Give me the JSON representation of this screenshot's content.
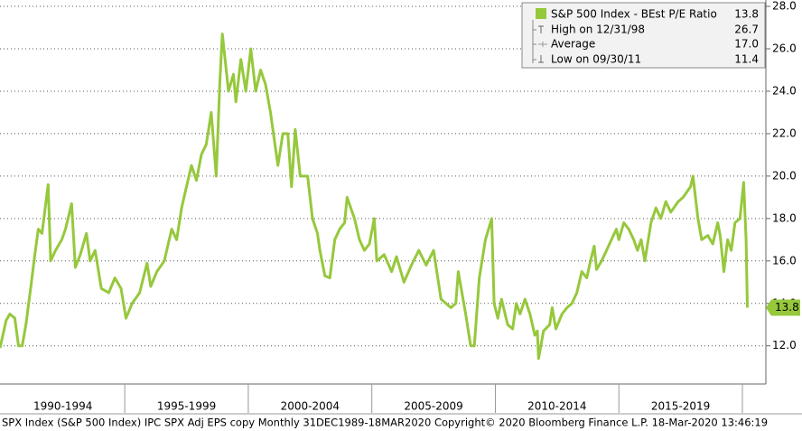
{
  "chart_data": {
    "type": "line",
    "legend": {
      "title": "S&P 500 Index - BEst P/E Ratio",
      "title_value": "13.8",
      "rows": [
        {
          "name": "High on 12/31/98",
          "value": "26.7"
        },
        {
          "name": "Average",
          "value": "17.0"
        },
        {
          "name": "Low on 09/30/11",
          "value": "11.4"
        }
      ]
    },
    "footer": "SPX Index (S&P 500 Index) IPC SPX Adj EPS copy  Monthly 31DEC1989-18MAR2020  Copyright© 2020 Bloomberg Finance L.P.  18-Mar-2020 13:46:19",
    "xlim": [
      1989.95,
      2020.95
    ],
    "xticks": [
      {
        "value": 1992.5,
        "label": "1990-1994"
      },
      {
        "value": 1997.5,
        "label": "1995-1999"
      },
      {
        "value": 2002.5,
        "label": "2000-2004"
      },
      {
        "value": 2007.5,
        "label": "2005-2009"
      },
      {
        "value": 2012.5,
        "label": "2010-2014"
      },
      {
        "value": 2017.5,
        "label": "2015-2019"
      }
    ],
    "ylim": [
      10.2,
      28.3
    ],
    "yticks": [
      {
        "value": 12,
        "label": "12.0"
      },
      {
        "value": 14,
        "label": "14.0"
      },
      {
        "value": 16,
        "label": "16.0"
      },
      {
        "value": 18,
        "label": "18.0"
      },
      {
        "value": 20,
        "label": "20.0"
      },
      {
        "value": 22,
        "label": "22.0"
      },
      {
        "value": 24,
        "label": "24.0"
      },
      {
        "value": 26,
        "label": "26.0"
      },
      {
        "value": 28,
        "label": "28.0"
      }
    ],
    "grid": true,
    "x": [
      1989.95,
      1990.2,
      1990.35,
      1990.55,
      1990.7,
      1990.85,
      1991.0,
      1991.2,
      1991.35,
      1991.5,
      1991.65,
      1991.9,
      1992.0,
      1992.2,
      1992.45,
      1992.6,
      1992.85,
      1993.0,
      1993.2,
      1993.45,
      1993.6,
      1993.8,
      1994.05,
      1994.35,
      1994.6,
      1994.85,
      1995.05,
      1995.3,
      1995.6,
      1995.9,
      1996.05,
      1996.3,
      1996.6,
      1996.9,
      1997.1,
      1997.3,
      1997.5,
      1997.7,
      1997.9,
      1998.1,
      1998.3,
      1998.5,
      1998.7,
      1998.85,
      1998.95,
      1999.2,
      1999.4,
      1999.5,
      1999.7,
      1999.9,
      2000.1,
      2000.3,
      2000.5,
      2000.7,
      2000.9,
      2001.2,
      2001.4,
      2001.6,
      2001.75,
      2001.9,
      2002.1,
      2002.4,
      2002.6,
      2002.8,
      2002.9,
      2003.1,
      2003.3,
      2003.5,
      2003.7,
      2003.9,
      2004.0,
      2004.3,
      2004.5,
      2004.7,
      2004.9,
      2005.1,
      2005.2,
      2005.5,
      2005.8,
      2006.0,
      2006.3,
      2006.6,
      2006.9,
      2007.2,
      2007.5,
      2007.8,
      2008.2,
      2008.4,
      2008.5,
      2008.8,
      2009.0,
      2009.15,
      2009.35,
      2009.6,
      2009.85,
      2009.95,
      2010.1,
      2010.25,
      2010.5,
      2010.7,
      2010.85,
      2011.0,
      2011.2,
      2011.4,
      2011.6,
      2011.7,
      2011.75,
      2011.95,
      2012.2,
      2012.3,
      2012.45,
      2012.7,
      2012.9,
      2013.1,
      2013.3,
      2013.5,
      2013.7,
      2013.85,
      2014.0,
      2014.1,
      2014.3,
      2014.5,
      2014.7,
      2014.9,
      2015.0,
      2015.2,
      2015.4,
      2015.6,
      2015.75,
      2015.9,
      2016.05,
      2016.3,
      2016.5,
      2016.7,
      2016.9,
      2017.1,
      2017.4,
      2017.6,
      2017.9,
      2018.0,
      2018.2,
      2018.35,
      2018.6,
      2018.8,
      2019.0,
      2019.1,
      2019.25,
      2019.4,
      2019.55,
      2019.7,
      2019.9,
      2020.05,
      2020.15,
      2020.2
    ],
    "series": [
      {
        "name": "S&P 500 Index - BEst P/E Ratio",
        "color": "#96c83c",
        "values": [
          11.9,
          13.2,
          13.5,
          13.3,
          12.0,
          12.0,
          13.0,
          14.8,
          16.2,
          17.5,
          17.3,
          19.6,
          16.0,
          16.5,
          17.0,
          17.5,
          18.7,
          15.7,
          16.3,
          17.3,
          16.0,
          16.5,
          14.7,
          14.5,
          15.2,
          14.7,
          13.3,
          14.0,
          14.5,
          15.9,
          14.8,
          15.5,
          16.0,
          17.5,
          17.0,
          18.5,
          19.5,
          20.5,
          19.8,
          21.0,
          21.5,
          23.0,
          20.0,
          24.5,
          26.7,
          24.0,
          24.8,
          23.5,
          25.5,
          24.0,
          26.0,
          24.0,
          25.0,
          24.3,
          23.0,
          20.5,
          22.0,
          22.0,
          19.5,
          22.2,
          20.0,
          20.0,
          18.0,
          17.3,
          16.5,
          15.3,
          15.2,
          17.0,
          17.5,
          17.8,
          19.0,
          18.0,
          17.0,
          16.5,
          16.8,
          18.0,
          16.0,
          16.3,
          15.5,
          16.2,
          15.0,
          15.8,
          16.5,
          15.8,
          16.5,
          14.2,
          13.8,
          14.0,
          15.5,
          13.5,
          12.0,
          12.0,
          15.2,
          17.0,
          18.0,
          14.0,
          13.3,
          14.2,
          13.0,
          12.8,
          14.0,
          13.5,
          14.2,
          13.5,
          12.5,
          12.7,
          11.4,
          12.7,
          13.0,
          13.8,
          12.8,
          13.5,
          13.8,
          14.0,
          14.5,
          15.5,
          15.2,
          16.0,
          16.7,
          15.6,
          16.0,
          16.5,
          17.0,
          17.5,
          17.0,
          17.8,
          17.5,
          17.0,
          16.5,
          17.0,
          16.0,
          17.8,
          18.5,
          18.0,
          18.8,
          18.3,
          18.8,
          19.0,
          19.5,
          20.0,
          18.0,
          17.0,
          17.2,
          16.8,
          17.8,
          17.2,
          15.5,
          17.0,
          16.5,
          17.8,
          18.0,
          19.7,
          17.0,
          13.8
        ]
      }
    ]
  }
}
